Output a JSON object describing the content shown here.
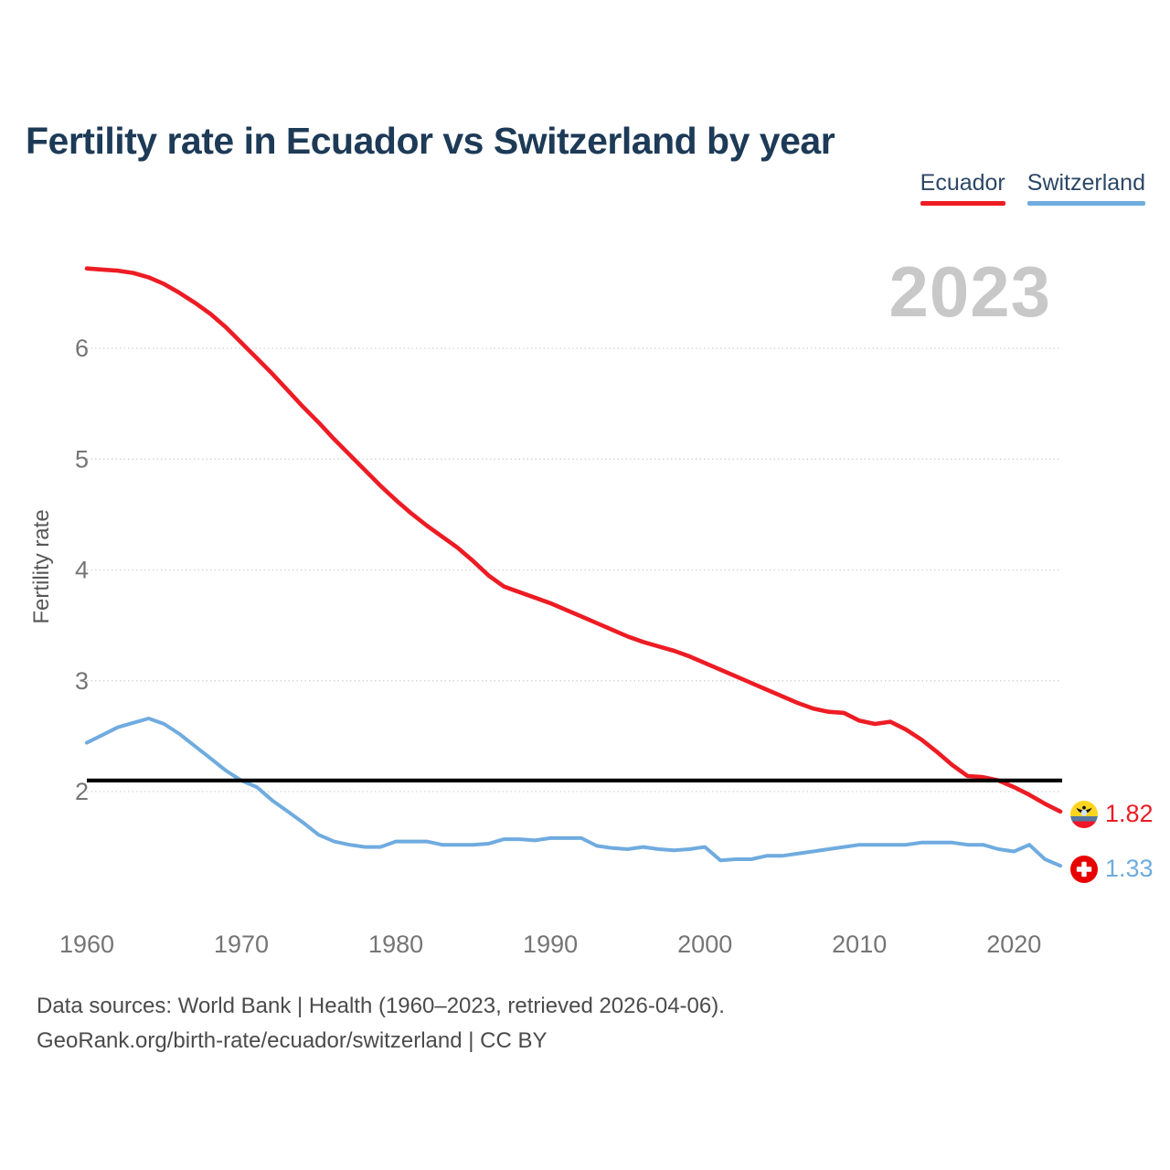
{
  "header": {
    "title": "Fertility rate in Ecuador vs Switzerland by year"
  },
  "legend": {
    "items": [
      {
        "label": "Ecuador",
        "color": "#ed1c24"
      },
      {
        "label": "Switzerland",
        "color": "#6fabdf"
      }
    ]
  },
  "watermark": {
    "text": "2023"
  },
  "footer": {
    "line1": "Data sources: World Bank | Health (1960–2023, retrieved 2026-04-06).",
    "line2": "GeoRank.org/birth-rate/ecuador/switzerland | CC BY"
  },
  "chart_data": {
    "type": "line",
    "title": "Fertility rate in Ecuador vs Switzerland by year",
    "xlabel": "",
    "ylabel": "Fertility rate",
    "xlim": [
      1960,
      2023
    ],
    "ylim": [
      1.0,
      7.0
    ],
    "grid": true,
    "legend_position": "top-right",
    "y_ticks": [
      2,
      3,
      4,
      5,
      6
    ],
    "x_ticks": [
      1960,
      1970,
      1980,
      1990,
      2000,
      2010,
      2020
    ],
    "reference_line": {
      "value": 2.1,
      "color": "#000000"
    },
    "x": [
      1960,
      1961,
      1962,
      1963,
      1964,
      1965,
      1966,
      1967,
      1968,
      1969,
      1970,
      1971,
      1972,
      1973,
      1974,
      1975,
      1976,
      1977,
      1978,
      1979,
      1980,
      1981,
      1982,
      1983,
      1984,
      1985,
      1986,
      1987,
      1988,
      1989,
      1990,
      1991,
      1992,
      1993,
      1994,
      1995,
      1996,
      1997,
      1998,
      1999,
      2000,
      2001,
      2002,
      2003,
      2004,
      2005,
      2006,
      2007,
      2008,
      2009,
      2010,
      2011,
      2012,
      2013,
      2014,
      2015,
      2016,
      2017,
      2018,
      2019,
      2020,
      2021,
      2022,
      2023
    ],
    "series": [
      {
        "name": "Ecuador",
        "color": "#ed1c24",
        "end_label": "1.82",
        "flag_icon": "ecuador-flag-icon",
        "values": [
          6.72,
          6.71,
          6.7,
          6.68,
          6.64,
          6.58,
          6.5,
          6.41,
          6.31,
          6.19,
          6.05,
          5.91,
          5.77,
          5.62,
          5.47,
          5.33,
          5.18,
          5.04,
          4.9,
          4.76,
          4.63,
          4.51,
          4.4,
          4.3,
          4.2,
          4.08,
          3.95,
          3.85,
          3.8,
          3.75,
          3.7,
          3.64,
          3.58,
          3.52,
          3.46,
          3.4,
          3.35,
          3.31,
          3.27,
          3.22,
          3.16,
          3.1,
          3.04,
          2.98,
          2.92,
          2.86,
          2.8,
          2.75,
          2.72,
          2.71,
          2.64,
          2.61,
          2.63,
          2.56,
          2.47,
          2.36,
          2.24,
          2.14,
          2.13,
          2.1,
          2.04,
          1.97,
          1.89,
          1.82
        ]
      },
      {
        "name": "Switzerland",
        "color": "#6fabdf",
        "end_label": "1.33",
        "flag_icon": "switzerland-flag-icon",
        "values": [
          2.44,
          2.51,
          2.58,
          2.62,
          2.66,
          2.61,
          2.52,
          2.41,
          2.3,
          2.19,
          2.1,
          2.04,
          1.92,
          1.82,
          1.72,
          1.61,
          1.55,
          1.52,
          1.5,
          1.5,
          1.55,
          1.55,
          1.55,
          1.52,
          1.52,
          1.52,
          1.53,
          1.57,
          1.57,
          1.56,
          1.58,
          1.58,
          1.58,
          1.51,
          1.49,
          1.48,
          1.5,
          1.48,
          1.47,
          1.48,
          1.5,
          1.38,
          1.39,
          1.39,
          1.42,
          1.42,
          1.44,
          1.46,
          1.48,
          1.5,
          1.52,
          1.52,
          1.52,
          1.52,
          1.54,
          1.54,
          1.54,
          1.52,
          1.52,
          1.48,
          1.46,
          1.52,
          1.39,
          1.33
        ]
      }
    ]
  }
}
